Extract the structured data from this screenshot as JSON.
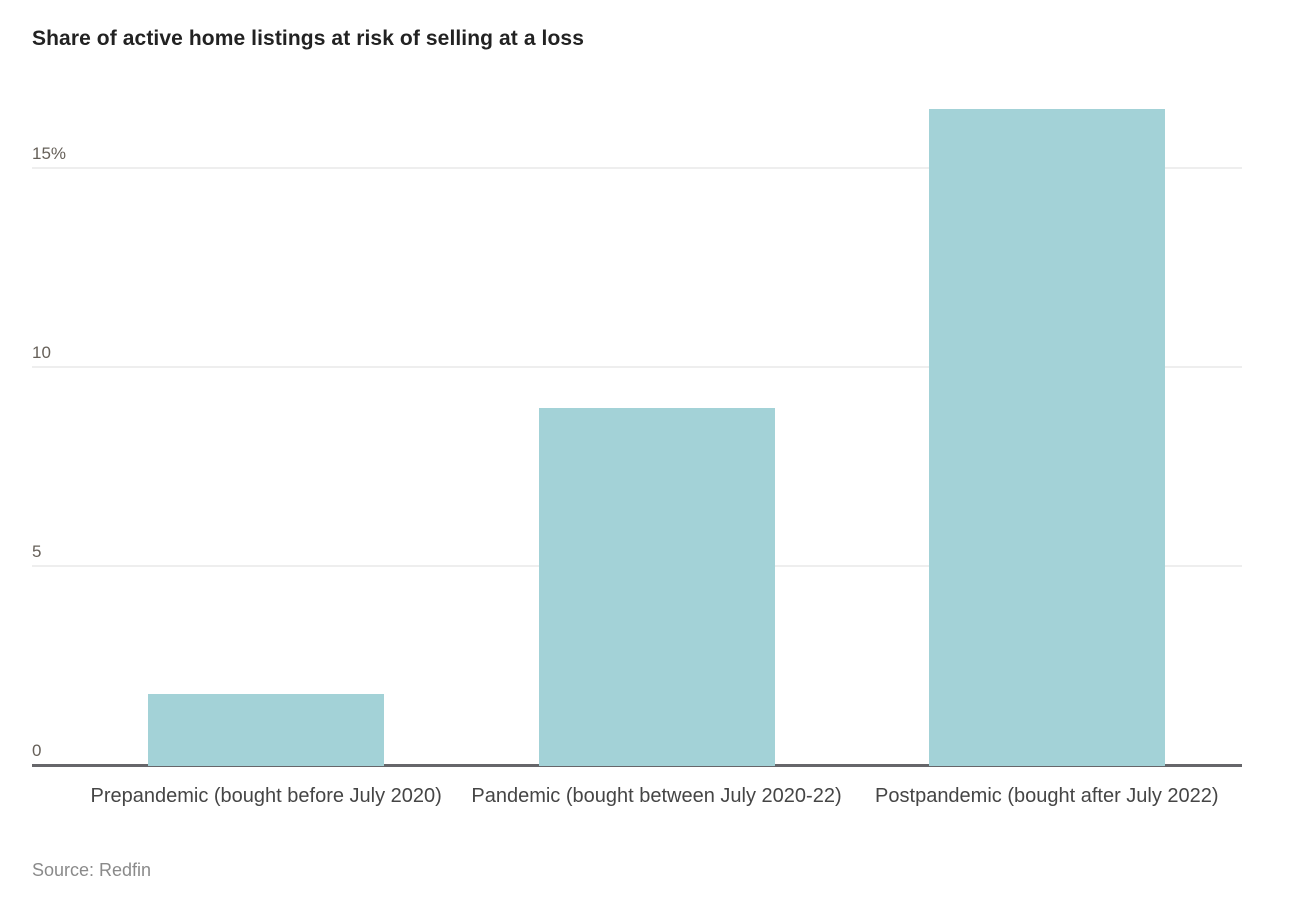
{
  "chart_data": {
    "type": "bar",
    "title": "Share of active home listings at risk of selling at a loss",
    "categories": [
      "Prepandemic (bought before July 2020)",
      "Pandemic (bought between July 2020-22)",
      "Postpandemic (bought after July 2022)"
    ],
    "values": [
      1.8,
      9.0,
      16.5
    ],
    "unit": "%",
    "xlabel": "",
    "ylabel": "",
    "ylim": [
      0,
      17.1
    ],
    "yticks": [
      {
        "value": 0,
        "label": "0"
      },
      {
        "value": 5,
        "label": "5"
      },
      {
        "value": 10,
        "label": "10"
      },
      {
        "value": 15,
        "label": "15%"
      }
    ],
    "grid": "horizontal",
    "legend": "none",
    "source": "Source: Redfin",
    "colors": {
      "bar_fill": "#a3d2d7",
      "gridline": "#eeeeee",
      "axis_line": "#66666a",
      "title_text": "#222222",
      "tick_text": "#666059",
      "category_text": "#454545",
      "source_text": "#8a8a8a"
    }
  }
}
